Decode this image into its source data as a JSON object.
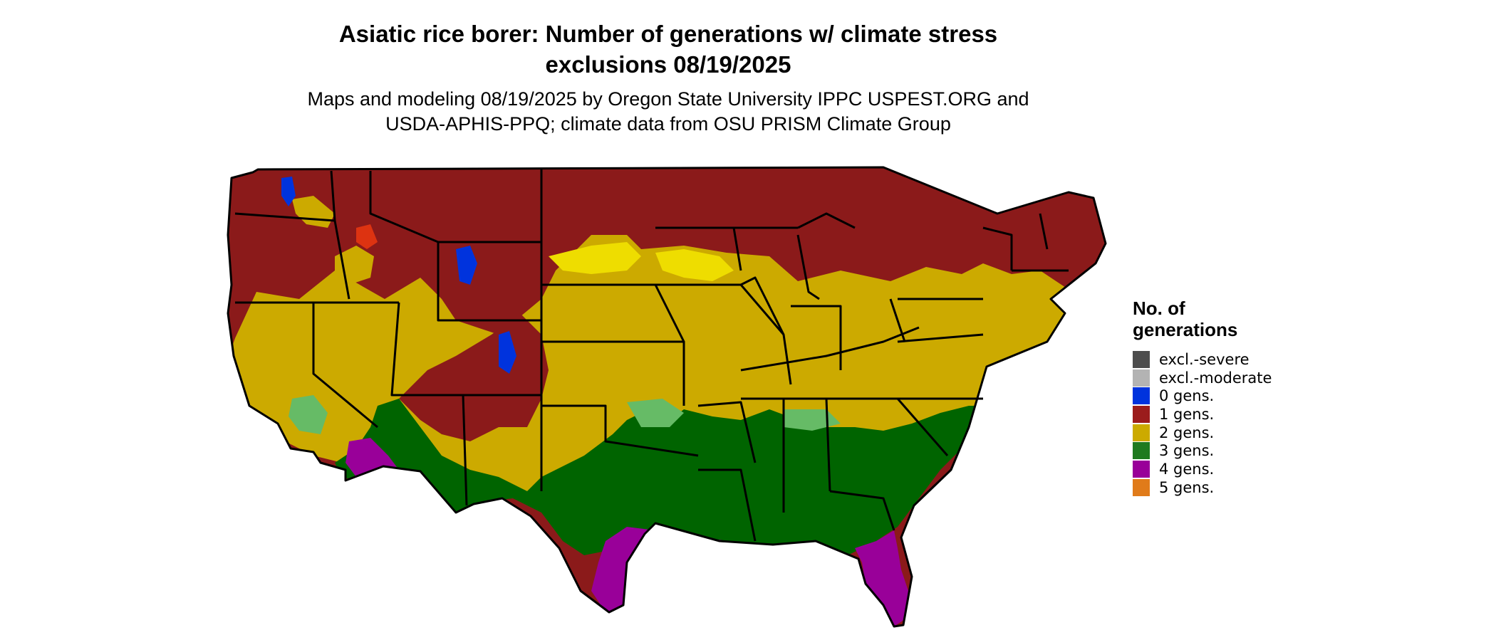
{
  "title": {
    "line1": "Asiatic rice borer: Number of generations w/ climate stress",
    "line2": "exclusions 08/19/2025"
  },
  "subtitle": {
    "line1": "Maps and modeling 08/19/2025 by Oregon State University IPPC USPEST.ORG and",
    "line2": "USDA-APHIS-PPQ; climate data from OSU PRISM Climate Group"
  },
  "legend": {
    "title_line1": "No. of",
    "title_line2": "generations",
    "items": [
      {
        "label": "excl.-severe",
        "color": "#4d4d4d"
      },
      {
        "label": "excl.-moderate",
        "color": "#b3b3b3"
      },
      {
        "label": "0 gens.",
        "color": "#0033dd"
      },
      {
        "label": "1 gens.",
        "color": "#9b1c1c"
      },
      {
        "label": "2 gens.",
        "color": "#ccaa00"
      },
      {
        "label": "3 gens.",
        "color": "#1f7a1f"
      },
      {
        "label": "4 gens.",
        "color": "#990099"
      },
      {
        "label": "5 gens.",
        "color": "#e07b1a"
      }
    ]
  },
  "colors": {
    "gen0": "#0033dd",
    "gen1": "#8b1a1a",
    "gen1_light": "#dd3311",
    "gen2": "#ccaa00",
    "gen2_light": "#eedd00",
    "gen3": "#006400",
    "gen3_light": "#66bb66",
    "gen4": "#990099",
    "gen4_light": "#dd55dd",
    "gen5": "#e07b1a",
    "excl_moderate": "#b3b3b3",
    "border": "#000000"
  }
}
